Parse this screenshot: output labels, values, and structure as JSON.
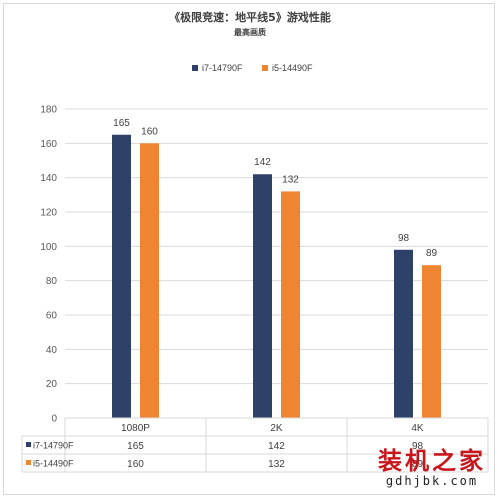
{
  "chart_data": {
    "type": "bar",
    "title": "《极限竞速：地平线5》游戏性能",
    "subtitle": "最高画质",
    "categories": [
      "1080P",
      "2K",
      "4K"
    ],
    "series": [
      {
        "name": "i7-14790F",
        "values": [
          165,
          142,
          98
        ],
        "color": "#2e4168"
      },
      {
        "name": "i5-14490F",
        "values": [
          160,
          132,
          89
        ],
        "color": "#ef8533"
      }
    ],
    "ylim": [
      0,
      180
    ],
    "yticks": [
      0,
      20,
      40,
      60,
      80,
      100,
      120,
      140,
      160,
      180
    ],
    "grid": true,
    "legend_position": "top-center",
    "data_table": true
  },
  "watermark": {
    "text": "装机之家",
    "url": "gdhjbk.com"
  }
}
